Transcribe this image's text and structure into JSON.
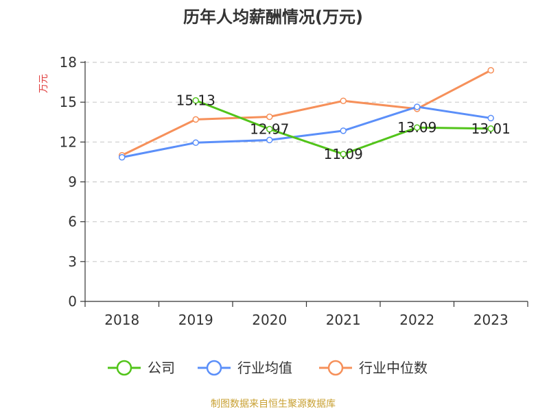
{
  "chart_data": {
    "type": "line",
    "title": "历年人均薪酬情况(万元)",
    "ylabel": "万元",
    "xlabel": "",
    "categories": [
      "2018",
      "2019",
      "2020",
      "2021",
      "2022",
      "2023"
    ],
    "ylim": [
      0,
      18
    ],
    "yticks": [
      0,
      3,
      6,
      9,
      12,
      15,
      18
    ],
    "grid": true,
    "legend_position": "bottom",
    "series": [
      {
        "name": "公司",
        "color": "#52c41a",
        "values": [
          null,
          15.13,
          12.97,
          11.09,
          13.09,
          13.01
        ],
        "labels": [
          null,
          "15.13",
          "12.97",
          "11.09",
          "13.09",
          "13.01"
        ]
      },
      {
        "name": "行业均值",
        "color": "#5b8ff9",
        "values": [
          10.85,
          11.95,
          12.15,
          12.85,
          14.65,
          13.8
        ]
      },
      {
        "name": "行业中位数",
        "color": "#f6905a",
        "values": [
          11.0,
          13.7,
          13.9,
          15.1,
          14.5,
          17.4
        ]
      }
    ]
  },
  "source": {
    "text": "制图数据来自恒生聚源数据库",
    "color": "#c8a032"
  },
  "colors": {
    "axis": "#333333",
    "grid": "#cccccc",
    "ylabel": "#e03c3c"
  }
}
